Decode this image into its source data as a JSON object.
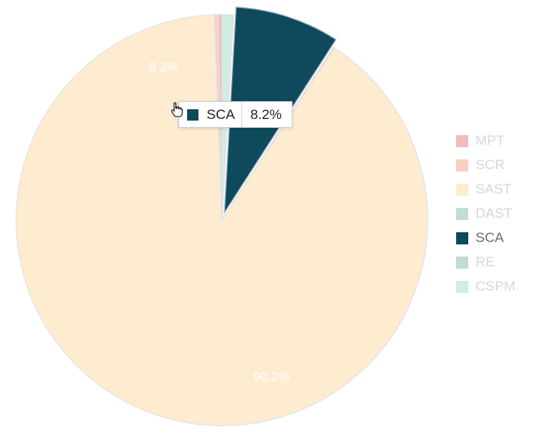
{
  "chart_data": {
    "type": "pie",
    "title": "",
    "categories": [
      "MPT",
      "SCR",
      "SAST",
      "DAST",
      "SCA",
      "RE",
      "CSPM"
    ],
    "values": [
      0.3,
      0.3,
      90.2,
      0.1,
      8.2,
      0.1,
      0.8
    ],
    "colors": [
      "#f2bcbc",
      "#f9d0c0",
      "#fdecd0",
      "#bfdcd8",
      "#0e4a5c",
      "#bfdcd8",
      "#cfeee2"
    ],
    "data_labels": [
      {
        "category": "SCA",
        "label": "8.2%"
      },
      {
        "category": "SAST",
        "label": "90.2%"
      }
    ],
    "legend_position": "right",
    "highlighted": "SCA"
  },
  "tooltip": {
    "name": "SCA",
    "value": "8.2%",
    "color": "#0e4a5c"
  }
}
